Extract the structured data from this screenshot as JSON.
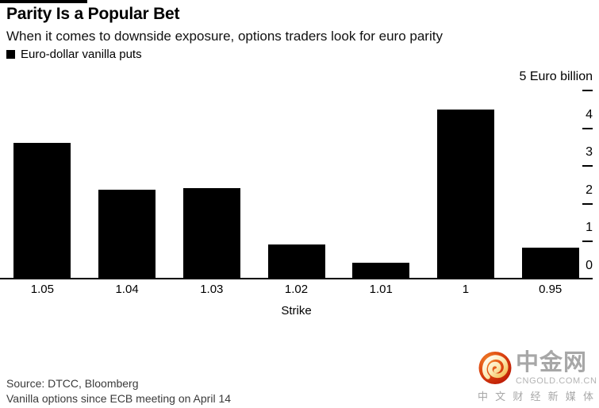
{
  "header": {
    "title": "Parity Is a Popular Bet",
    "subtitle": "When it comes to downside exposure, options traders look for euro parity",
    "legend": {
      "label": "Euro-dollar vanilla puts",
      "swatch_color": "#000000"
    }
  },
  "chart_data": {
    "type": "bar",
    "title": "Parity Is a Popular Bet",
    "subtitle": "When it comes to downside exposure, options traders look for euro parity",
    "series_name": "Euro-dollar vanilla puts",
    "categories": [
      "1.05",
      "1.04",
      "1.03",
      "1.02",
      "1.01",
      "1",
      "0.95"
    ],
    "values": [
      3.6,
      2.35,
      2.4,
      0.9,
      0.4,
      4.5,
      0.8
    ],
    "xlabel": "Strike",
    "ylabel": "Euro billion",
    "ylim": [
      0,
      5
    ],
    "y_axis": {
      "side": "right",
      "top_label": "5 Euro billion",
      "tick_labels": [
        "0",
        "1",
        "2",
        "3",
        "4"
      ],
      "tick_values": [
        0,
        1,
        2,
        3,
        4
      ],
      "max": 5
    },
    "grid": false,
    "bar_color": "#000000",
    "legend_position": "top-left"
  },
  "footer": {
    "source": "Source: DTCC, Bloomberg",
    "note": "Vanilla options since ECB meeting on April 14"
  },
  "logo": {
    "name": "中金网",
    "domain": "CNGOLD.COM.CN",
    "tagline_chars": [
      "中",
      "文",
      "财",
      "经",
      "新",
      "媒",
      "体"
    ],
    "tagline": "中文财经新媒体",
    "icon": "red-swirl-circle-icon",
    "icon_color_outer": "#c62408",
    "icon_color_inner": "#f07c24",
    "swirl_color": "#fbe9b0",
    "text_color": "#a7a7a7"
  }
}
